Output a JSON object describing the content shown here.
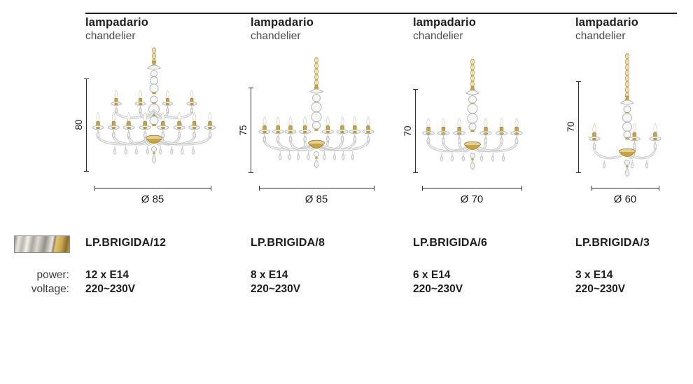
{
  "spec_labels": {
    "power": "power:",
    "voltage": "voltage:"
  },
  "thumbnail": {
    "name": "brigida-material-swatch"
  },
  "columns": [
    {
      "title_primary": "lampadario",
      "title_secondary": "chandelier",
      "height": "80",
      "diameter": "Ø 85",
      "code": "LP.BRIGIDA/12",
      "power": "12 x E14",
      "voltage": "220~230V",
      "lights": 12
    },
    {
      "title_primary": "lampadario",
      "title_secondary": "chandelier",
      "height": "75",
      "diameter": "Ø 85",
      "code": "LP.BRIGIDA/8",
      "power": "8 x E14",
      "voltage": "220~230V",
      "lights": 8
    },
    {
      "title_primary": "lampadario",
      "title_secondary": "chandelier",
      "height": "70",
      "diameter": "Ø 70",
      "code": "LP.BRIGIDA/6",
      "power": "6 x E14",
      "voltage": "220~230V",
      "lights": 6
    },
    {
      "title_primary": "lampadario",
      "title_secondary": "chandelier",
      "height": "70",
      "diameter": "Ø 60",
      "code": "LP.BRIGIDA/3",
      "power": "3 x E14",
      "voltage": "220~230V",
      "lights": 3
    }
  ],
  "colors": {
    "gold": "#c9a445",
    "gold_dark": "#9c7c2a",
    "gold_light": "#e7cf8a",
    "glass_stroke": "#b4b7ba",
    "glass_fill": "#f6f7f7",
    "candle": "#fdfcf5",
    "text": "#1d1d1b",
    "muted_text": "#4c4c4c",
    "line": "#2e2e2e"
  }
}
